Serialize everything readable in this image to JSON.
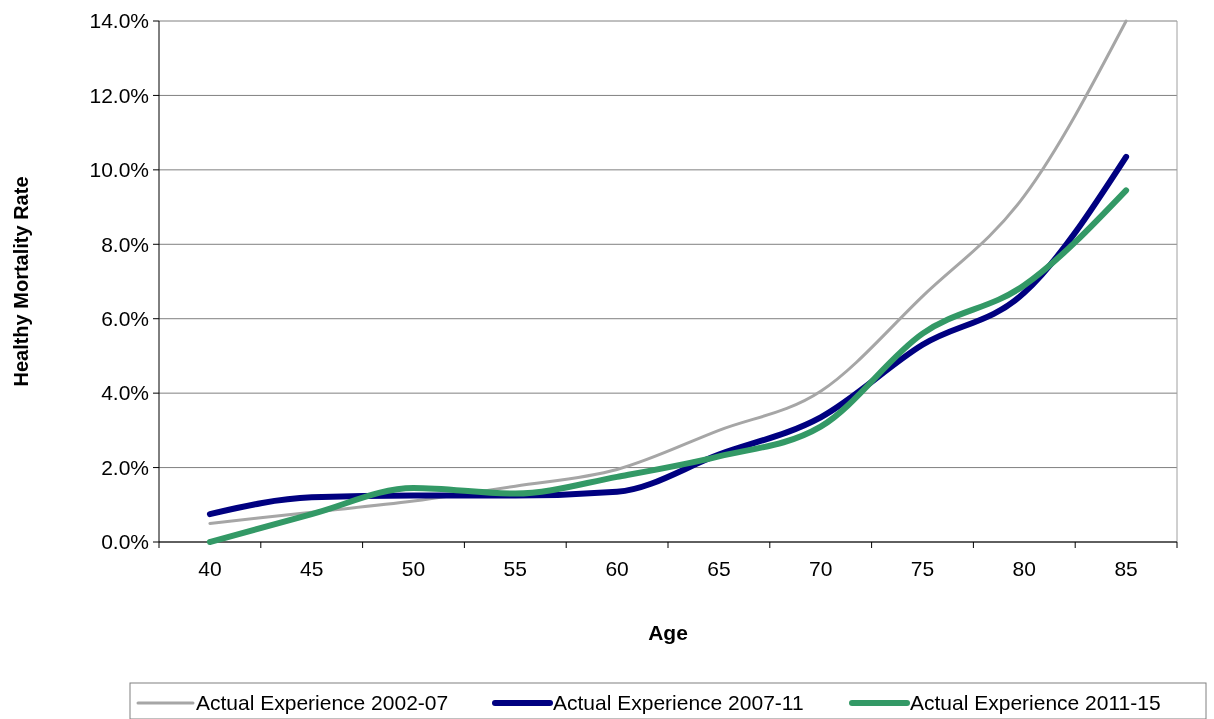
{
  "chart_data": {
    "type": "line",
    "xlabel": "Age",
    "ylabel": "Healthy Mortality Rate",
    "categories": [
      "40",
      "45",
      "50",
      "55",
      "60",
      "65",
      "70",
      "75",
      "80",
      "85"
    ],
    "series": [
      {
        "name": "Actual Experience 2002-07",
        "color": "#a6a6a6",
        "values": [
          0.5,
          0.8,
          1.1,
          1.5,
          1.95,
          3.0,
          4.05,
          6.6,
          9.3,
          14.0
        ]
      },
      {
        "name": "Actual Experience 2007-11",
        "color": "#000080",
        "values": [
          0.75,
          1.2,
          1.25,
          1.25,
          1.35,
          2.35,
          3.35,
          5.3,
          6.7,
          10.35
        ]
      },
      {
        "name": "Actual Experience 2011-15",
        "color": "#339966",
        "values": [
          0.0,
          0.75,
          1.45,
          1.3,
          1.75,
          2.3,
          3.1,
          5.6,
          6.9,
          9.45
        ]
      }
    ],
    "ylim": [
      0,
      14
    ],
    "yticks": [
      {
        "value": 0,
        "label": "0.0%"
      },
      {
        "value": 2,
        "label": "2.0%"
      },
      {
        "value": 4,
        "label": "4.0%"
      },
      {
        "value": 6,
        "label": "6.0%"
      },
      {
        "value": 8,
        "label": "8.0%"
      },
      {
        "value": 10,
        "label": "10.0%"
      },
      {
        "value": 12,
        "label": "12.0%"
      },
      {
        "value": 14,
        "label": "14.0%"
      }
    ],
    "grid": "y",
    "legend": "bottom",
    "marker": "none",
    "line_style": "solid"
  }
}
